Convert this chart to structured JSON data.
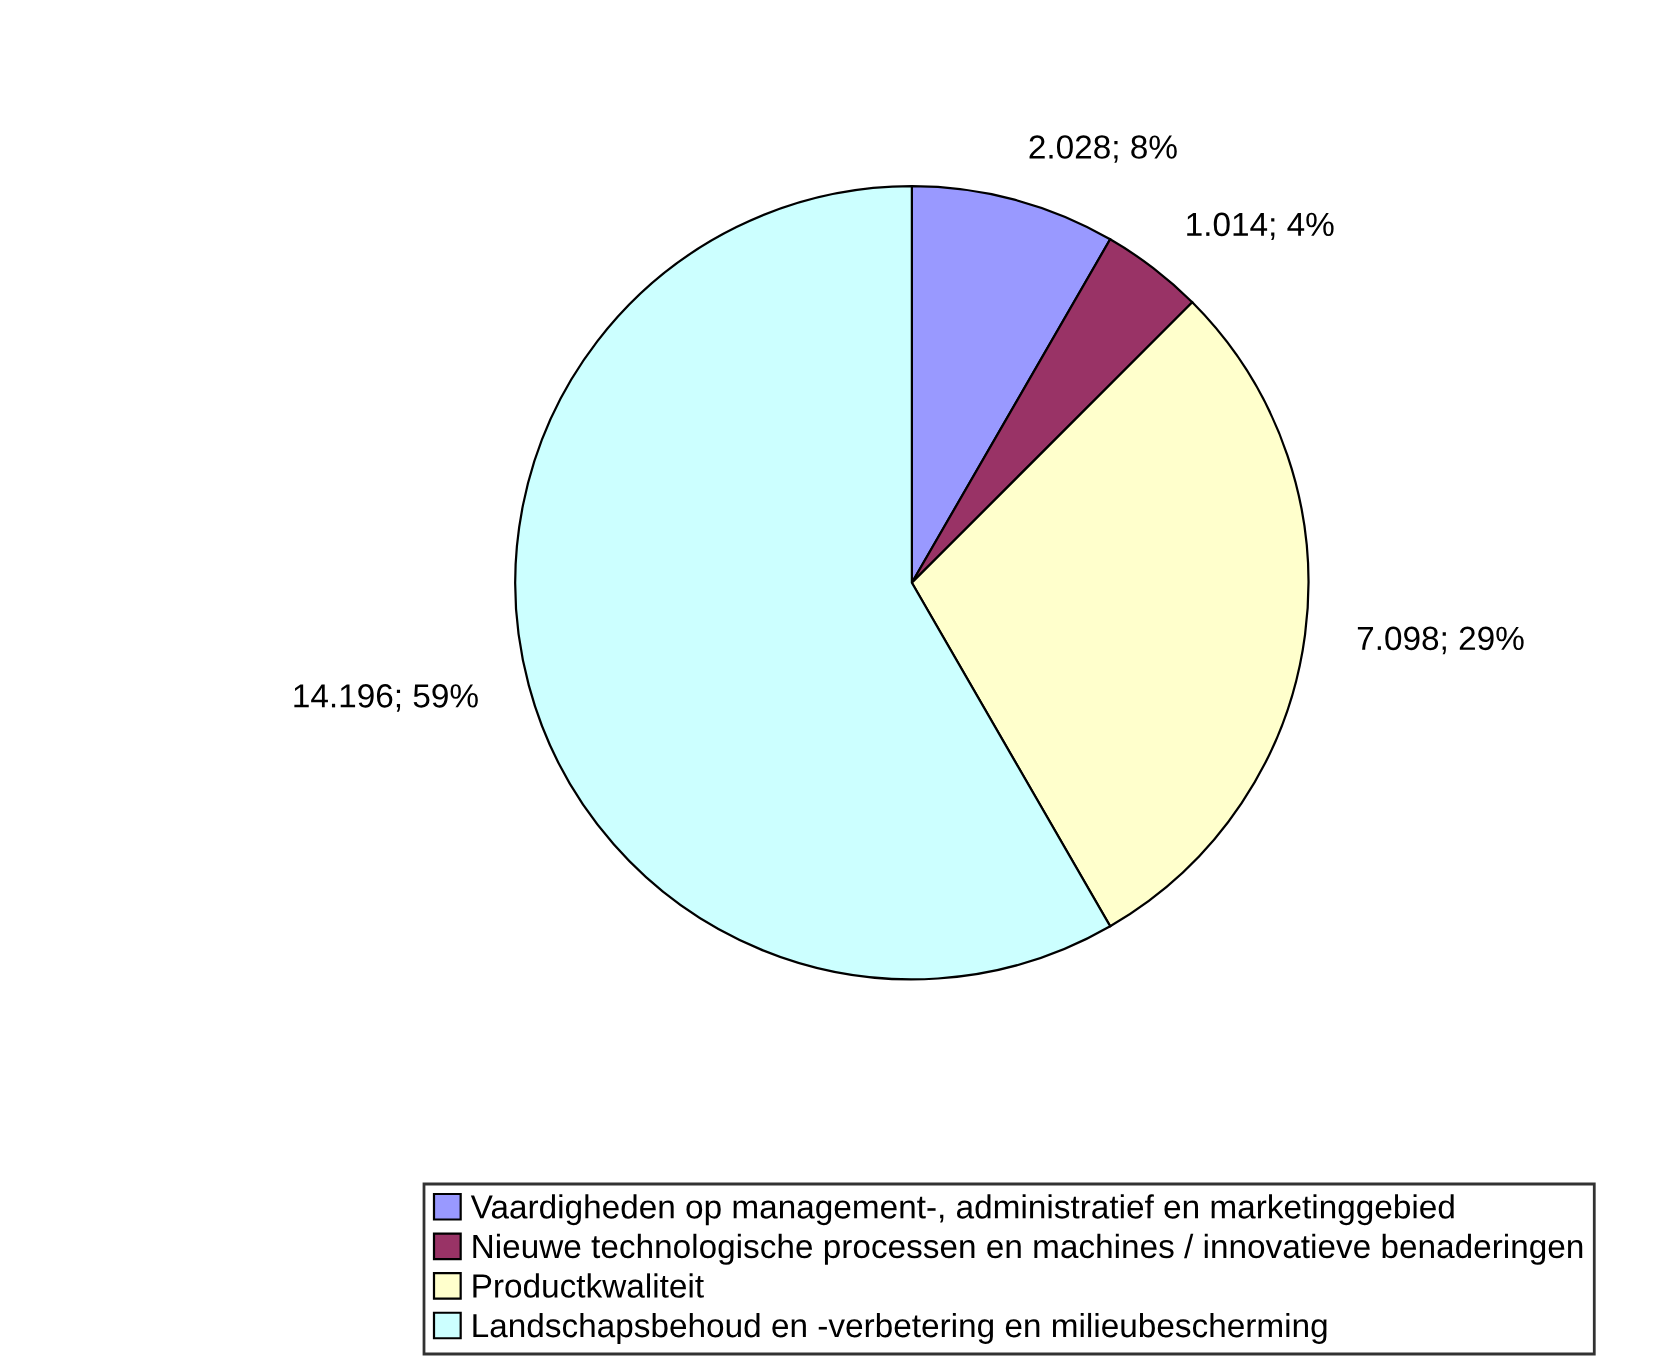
{
  "chart_data": {
    "type": "pie",
    "categories": [
      "Vaardigheden op management-, administratief en marketinggebied",
      "Nieuwe technologische processen en machines / innovatieve benaderingen",
      "Productkwaliteit",
      "Landschapsbehoud en -verbetering en milieubescherming"
    ],
    "values": [
      2028,
      1014,
      7098,
      14196
    ],
    "value_labels": [
      "2.028; 8%",
      "1.014; 4%",
      "7.098; 29%",
      "14.196; 59%"
    ],
    "colors": [
      "#9999ff",
      "#993366",
      "#ffffcc",
      "#ccffff"
    ],
    "legend": "bottom"
  }
}
